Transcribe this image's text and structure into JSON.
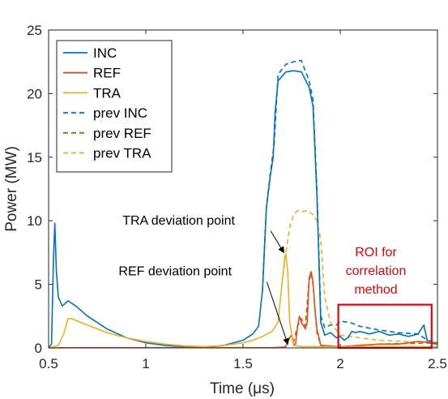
{
  "chart_data": {
    "type": "line",
    "title": "",
    "xlabel": "Time (μs)",
    "ylabel": "Power (MW)",
    "xlim": [
      0.5,
      2.5
    ],
    "ylim": [
      0,
      25
    ],
    "xticks": [
      0.5,
      1,
      1.5,
      2,
      2.5
    ],
    "yticks": [
      0,
      5,
      10,
      15,
      20,
      25
    ],
    "xtick_labels": [
      "0.5",
      "1",
      "1.5",
      "2",
      "2.5"
    ],
    "ytick_labels": [
      "0",
      "5",
      "10",
      "15",
      "20",
      "25"
    ],
    "grid": false,
    "legend_position": "top-left",
    "colors": {
      "inc": "#0072BD",
      "ref": "#D95319",
      "tra": "#EDB120",
      "roi": "#E8000B"
    },
    "series": [
      {
        "name": "INC",
        "style": "solid",
        "color": "#0072BD",
        "x": [
          0.5,
          0.515,
          0.525,
          0.532,
          0.54,
          0.55,
          0.57,
          0.6,
          0.64,
          0.7,
          0.8,
          0.9,
          1.0,
          1.1,
          1.2,
          1.3,
          1.4,
          1.5,
          1.55,
          1.58,
          1.6,
          1.62,
          1.64,
          1.655,
          1.665,
          1.68,
          1.72,
          1.76,
          1.8,
          1.84,
          1.86,
          1.88,
          1.9,
          1.92,
          1.95,
          1.98,
          2.0,
          2.02,
          2.04,
          2.06,
          2.08,
          2.1,
          2.15,
          2.2,
          2.25,
          2.3,
          2.35,
          2.4,
          2.43,
          2.45,
          2.5
        ],
        "y": [
          0.0,
          0.3,
          7.0,
          9.8,
          6.0,
          4.0,
          3.3,
          3.7,
          3.3,
          2.5,
          1.5,
          0.8,
          0.4,
          0.2,
          0.1,
          0.05,
          0.2,
          0.6,
          1.1,
          1.7,
          4.5,
          11.0,
          13.5,
          15.0,
          18.5,
          21.0,
          21.7,
          21.8,
          21.7,
          20.5,
          19.0,
          12.0,
          2.0,
          1.0,
          1.2,
          0.8,
          0.9,
          0.6,
          0.8,
          1.3,
          1.2,
          1.3,
          1.1,
          1.3,
          1.0,
          1.1,
          0.9,
          1.1,
          1.8,
          0.4,
          0.3
        ]
      },
      {
        "name": "REF",
        "style": "solid",
        "color": "#D95319",
        "x": [
          0.5,
          0.6,
          0.8,
          1.0,
          1.2,
          1.4,
          1.6,
          1.65,
          1.7,
          1.72,
          1.74,
          1.75,
          1.76,
          1.77,
          1.78,
          1.79,
          1.8,
          1.82,
          1.83,
          1.84,
          1.85,
          1.86,
          1.87,
          1.88,
          1.9,
          1.95,
          2.0,
          2.1,
          2.2,
          2.3,
          2.4,
          2.5
        ],
        "y": [
          0.0,
          0.02,
          0.02,
          0.02,
          0.02,
          0.02,
          0.02,
          0.02,
          0.05,
          0.1,
          0.8,
          1.0,
          0.2,
          0.3,
          1.6,
          2.5,
          2.0,
          1.5,
          2.0,
          5.5,
          6.0,
          5.2,
          3.0,
          1.5,
          0.2,
          0.15,
          0.1,
          0.2,
          0.3,
          0.3,
          0.5,
          0.4
        ]
      },
      {
        "name": "TRA",
        "style": "solid",
        "color": "#EDB120",
        "x": [
          0.5,
          0.55,
          0.58,
          0.6,
          0.62,
          0.65,
          0.7,
          0.8,
          0.9,
          1.0,
          1.1,
          1.2,
          1.3,
          1.4,
          1.5,
          1.55,
          1.6,
          1.65,
          1.68,
          1.7,
          1.715,
          1.72,
          1.73,
          1.74,
          1.76,
          1.8,
          1.9,
          2.0,
          2.2,
          2.4,
          2.5
        ],
        "y": [
          0.0,
          0.2,
          1.2,
          2.3,
          2.3,
          2.1,
          1.8,
          1.2,
          0.8,
          0.5,
          0.3,
          0.15,
          0.1,
          0.2,
          0.4,
          0.6,
          0.9,
          1.3,
          2.0,
          5.0,
          7.2,
          7.4,
          6.0,
          2.0,
          0.2,
          0.1,
          0.1,
          0.1,
          0.1,
          0.1,
          0.1
        ]
      },
      {
        "name": "prev INC",
        "style": "dashed",
        "color": "#0072BD",
        "x": [
          1.6,
          1.62,
          1.64,
          1.66,
          1.68,
          1.72,
          1.76,
          1.8,
          1.84,
          1.86,
          1.88,
          1.9,
          1.92,
          1.95,
          1.98,
          2.0,
          2.05,
          2.1,
          2.2,
          2.3,
          2.4,
          2.45,
          2.5
        ],
        "y": [
          4.5,
          11.0,
          13.7,
          16.0,
          21.5,
          22.3,
          22.5,
          22.6,
          21.0,
          19.5,
          12.5,
          2.5,
          1.6,
          1.8,
          1.8,
          2.1,
          2.0,
          1.7,
          1.4,
          1.2,
          1.1,
          0.6,
          0.4
        ]
      },
      {
        "name": "prev REF",
        "style": "dashed",
        "color": "#D95319",
        "x": [
          1.74,
          1.75,
          1.76,
          1.78,
          1.8,
          1.82,
          1.84,
          1.85,
          1.86,
          1.88,
          1.9,
          2.0,
          2.2,
          2.5
        ],
        "y": [
          0.8,
          1.0,
          0.5,
          1.7,
          2.3,
          1.7,
          5.3,
          5.9,
          5.0,
          1.2,
          0.2,
          0.1,
          0.3,
          0.4
        ]
      },
      {
        "name": "prev TRA",
        "style": "dashed",
        "color": "#EDB120",
        "x": [
          1.7,
          1.72,
          1.74,
          1.76,
          1.78,
          1.8,
          1.83,
          1.86,
          1.88,
          1.9,
          1.92,
          1.95,
          2.0,
          2.2,
          2.5
        ],
        "y": [
          5.0,
          7.5,
          9.5,
          10.5,
          10.8,
          10.7,
          10.8,
          10.5,
          10.0,
          8.5,
          4.0,
          2.0,
          1.0,
          0.6,
          0.4
        ]
      }
    ],
    "annotations": [
      {
        "text": "TRA deviation point",
        "target_x": 1.71,
        "target_y": 7.5,
        "text_x": 0.88,
        "text_y": 9.7
      },
      {
        "text": "REF deviation point",
        "target_x": 1.73,
        "target_y": 0.3,
        "text_x": 0.86,
        "text_y": 5.7
      }
    ],
    "roi": {
      "label_lines": [
        "ROI for",
        "correlation",
        "method"
      ],
      "x0": 1.99,
      "x1": 2.47,
      "y0": 0,
      "y1": 3.4
    }
  }
}
